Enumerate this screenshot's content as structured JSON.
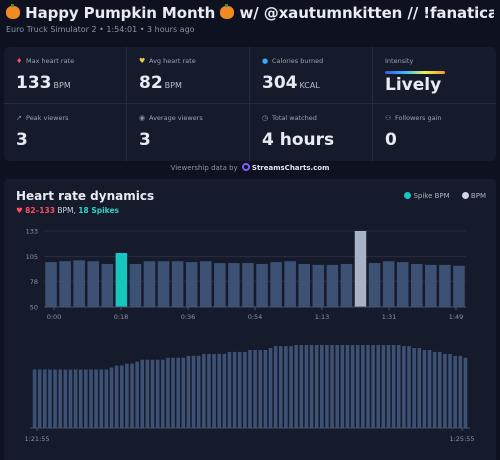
{
  "header": {
    "title_prefix": "Happy Pumpkin Month",
    "title_suffix": "w/ @xautumnkitten // !fanatical !rgb !sus // [H...",
    "subtitle": "Euro Truck Simulator 2 • 1:54:01 • 3 hours ago"
  },
  "stats": {
    "max_hr": {
      "label": "Max heart rate",
      "value": "133",
      "unit": "BPM"
    },
    "avg_hr": {
      "label": "Avg heart rate",
      "value": "82",
      "unit": "BPM"
    },
    "calories": {
      "label": "Calories burned",
      "value": "304",
      "unit": "KCAL"
    },
    "intensity": {
      "label": "Intensity",
      "value": "Lively"
    },
    "peak_viewers": {
      "label": "Peak viewers",
      "value": "3"
    },
    "avg_viewers": {
      "label": "Average viewers",
      "value": "3"
    },
    "total_watched": {
      "label": "Total watched",
      "value": "4 hours"
    },
    "followers_gain": {
      "label": "Followers gain",
      "value": "0"
    }
  },
  "viewership_note": {
    "text": "Viewership data by",
    "brand": "StreamsCharts.com"
  },
  "chart": {
    "title": "Heart rate dynamics",
    "range_text": "82–133",
    "range_suffix": " BPM, ",
    "spikes_text": "18 Spikes",
    "legend": {
      "spike": "Spike BPM",
      "bpm": "BPM"
    },
    "colors": {
      "normal": "#3c5173",
      "spike": "#19c6bd",
      "max": "#a9b3c8",
      "grid": "#262c42",
      "axis": "#4a5270"
    }
  },
  "chart_data": [
    {
      "type": "bar",
      "y_ticks": [
        50,
        78,
        105,
        133
      ],
      "ylim": [
        50,
        133
      ],
      "x_tick_labels": [
        "0:00",
        "0:18",
        "0:36",
        "0:54",
        "1:13",
        "1:31",
        "1:49"
      ],
      "values": [
        99,
        100,
        101,
        100,
        97,
        109,
        97,
        100,
        100,
        100,
        99,
        100,
        98,
        98,
        98,
        97,
        99,
        100,
        97,
        96,
        96,
        97,
        133,
        98,
        100,
        99,
        97,
        96,
        96,
        95
      ],
      "spike_index": 5,
      "max_index": 22
    },
    {
      "type": "bar",
      "x_tick_labels": [
        "1:21:55",
        "1:25:55"
      ],
      "values": [
        30,
        30,
        30,
        30,
        30,
        30,
        30,
        30,
        30,
        30,
        30,
        30,
        30,
        30,
        30,
        31,
        32,
        32,
        33,
        33,
        34,
        35,
        35,
        35,
        35,
        35,
        36,
        36,
        36,
        36,
        37,
        37,
        37,
        38,
        38,
        38,
        38,
        38,
        39,
        39,
        39,
        39,
        40,
        40,
        40,
        40,
        41,
        42,
        42,
        42,
        42,
        43,
        43,
        44,
        44,
        44,
        45,
        45,
        46,
        46,
        46,
        47,
        47,
        47,
        47,
        46,
        45,
        45,
        45,
        44,
        43,
        43,
        42,
        42,
        41,
        41,
        40,
        40,
        39,
        39,
        38,
        38,
        37,
        37,
        36
      ]
    }
  ]
}
